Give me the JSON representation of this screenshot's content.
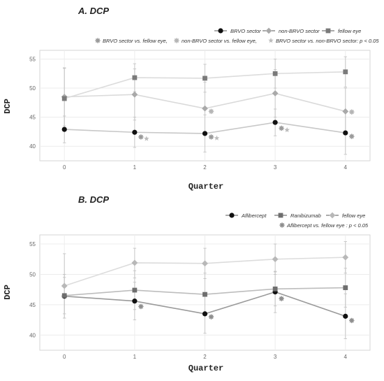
{
  "chart_data": [
    {
      "type": "line",
      "title": "A. DCP",
      "xlabel": "Quarter",
      "ylabel": "DCP",
      "x": [
        0,
        1,
        2,
        3,
        4
      ],
      "xlim": [
        -0.35,
        4.35
      ],
      "ylim": [
        37.5,
        56.5
      ],
      "yticks": [
        40,
        45,
        50,
        55
      ],
      "grid": true,
      "legend_placement": "top",
      "series": [
        {
          "name": "BRVO sector",
          "marker": "circle",
          "color": "#111111",
          "line_color": "#c8c8c8",
          "values": [
            42.9,
            42.4,
            42.2,
            44.1,
            42.3
          ],
          "err_low": [
            40.6,
            39.8,
            39.0,
            41.8,
            38.6
          ],
          "err_high": [
            45.2,
            45.0,
            45.4,
            46.4,
            46.0
          ]
        },
        {
          "name": "non-BRVO sector",
          "marker": "diamond",
          "color": "#a9a9a9",
          "line_color": "#dadada",
          "values": [
            48.5,
            48.9,
            46.5,
            49.1,
            46.0
          ],
          "err_low": [
            43.5,
            44.5,
            42.0,
            45.0,
            42.0
          ],
          "err_high": [
            53.5,
            53.3,
            51.0,
            53.2,
            50.0
          ]
        },
        {
          "name": "fellow eye",
          "marker": "square",
          "color": "#7a7a7a",
          "line_color": "#dcdcdc",
          "values": [
            48.2,
            51.8,
            51.7,
            52.5,
            52.8
          ],
          "err_low": [
            43.0,
            49.4,
            49.3,
            50.0,
            50.2
          ],
          "err_high": [
            53.4,
            54.2,
            54.1,
            55.0,
            55.4
          ]
        }
      ],
      "significance_legend": [
        {
          "symbol": "asterisk",
          "color": "#9a9a9a",
          "label": "BRVO sector vs. fellow eye,"
        },
        {
          "symbol": "asterisk",
          "color": "#b5b5b5",
          "label": "non-BRVO sector vs. fellow eye,"
        },
        {
          "symbol": "star",
          "color": "#bcbcbc",
          "label": "BRVO sector vs. non-BRVO sector: p < 0.05"
        }
      ],
      "significance_marks": [
        {
          "x": 1,
          "y": 41.6,
          "symbol": "asterisk",
          "color": "#9a9a9a"
        },
        {
          "x": 1,
          "y": 41.3,
          "symbol": "star",
          "color": "#bcbcbc",
          "offset": 1
        },
        {
          "x": 2,
          "y": 46.0,
          "symbol": "asterisk",
          "color": "#b5b5b5"
        },
        {
          "x": 2,
          "y": 41.6,
          "symbol": "asterisk",
          "color": "#9a9a9a"
        },
        {
          "x": 2,
          "y": 41.4,
          "symbol": "star",
          "color": "#bcbcbc",
          "offset": 1
        },
        {
          "x": 3,
          "y": 43.1,
          "symbol": "asterisk",
          "color": "#9a9a9a"
        },
        {
          "x": 3,
          "y": 42.8,
          "symbol": "star",
          "color": "#bcbcbc",
          "offset": 1
        },
        {
          "x": 4,
          "y": 45.9,
          "symbol": "asterisk",
          "color": "#b5b5b5"
        },
        {
          "x": 4,
          "y": 41.7,
          "symbol": "asterisk",
          "color": "#9a9a9a"
        }
      ]
    },
    {
      "type": "line",
      "title": "B. DCP",
      "xlabel": "Quarter",
      "ylabel": "DCP",
      "x": [
        0,
        1,
        2,
        3,
        4
      ],
      "xlim": [
        -0.35,
        4.35
      ],
      "ylim": [
        37.5,
        56.5
      ],
      "yticks": [
        40,
        45,
        50,
        55
      ],
      "grid": true,
      "legend_placement": "top",
      "series": [
        {
          "name": "Aflibercept",
          "marker": "circle",
          "color": "#111111",
          "line_color": "#9a9a9a",
          "values": [
            46.4,
            45.6,
            43.5,
            47.1,
            43.1
          ],
          "err_low": [
            42.8,
            42.5,
            40.3,
            43.7,
            39.4
          ],
          "err_high": [
            50.0,
            48.7,
            46.7,
            50.5,
            46.8
          ]
        },
        {
          "name": "Ranibizumab",
          "marker": "square",
          "color": "#6e6e6e",
          "line_color": "#bdbdbd",
          "values": [
            46.5,
            47.4,
            46.7,
            47.6,
            47.8
          ],
          "err_low": [
            43.5,
            44.2,
            43.2,
            44.8,
            44.6
          ],
          "err_high": [
            49.5,
            50.6,
            50.2,
            50.4,
            51.0
          ]
        },
        {
          "name": "fellow eye",
          "marker": "diamond",
          "color": "#b8b8b8",
          "line_color": "#dcdcdc",
          "values": [
            48.1,
            51.9,
            51.8,
            52.5,
            52.8
          ],
          "err_low": [
            42.8,
            49.4,
            49.3,
            50.0,
            50.2
          ],
          "err_high": [
            53.4,
            54.3,
            54.3,
            55.0,
            55.4
          ]
        }
      ],
      "significance_legend": [
        {
          "symbol": "asterisk",
          "color": "#8e8e8e",
          "label": "Aflibercept vs. fellow eye : p < 0.05"
        }
      ],
      "significance_marks": [
        {
          "x": 1,
          "y": 44.7,
          "symbol": "asterisk",
          "color": "#8e8e8e"
        },
        {
          "x": 2,
          "y": 43.0,
          "symbol": "asterisk",
          "color": "#8e8e8e"
        },
        {
          "x": 3,
          "y": 46.0,
          "symbol": "asterisk",
          "color": "#8e8e8e"
        },
        {
          "x": 4,
          "y": 42.4,
          "symbol": "asterisk",
          "color": "#8e8e8e"
        }
      ]
    }
  ]
}
